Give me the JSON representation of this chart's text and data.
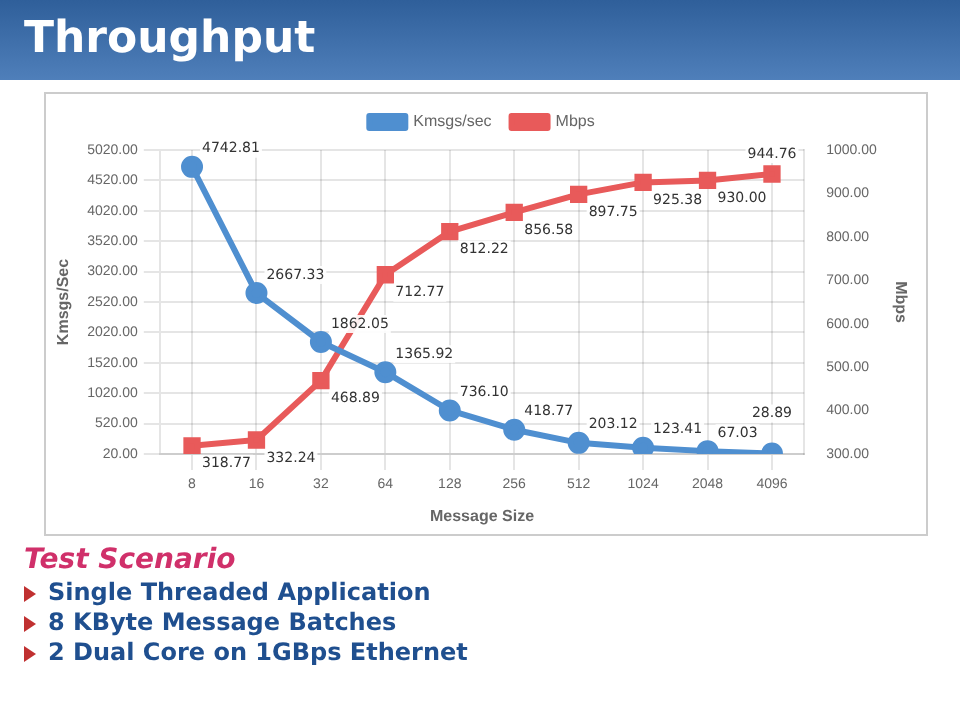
{
  "chart_data": {
    "type": "line",
    "title": "Throughput",
    "xlabel": "Message Size",
    "ylabel": "Kmsgs/Sec",
    "y2label": "Mbps",
    "categories": [
      "8",
      "16",
      "32",
      "64",
      "128",
      "256",
      "512",
      "1024",
      "2048",
      "4096"
    ],
    "series": [
      {
        "name": "Kmsgs/sec",
        "color": "#4f8fd0",
        "marker": "circle",
        "values": [
          4742.81,
          2667.33,
          1862.05,
          1365.92,
          736.1,
          418.77,
          203.12,
          123.41,
          67.03,
          28.89
        ],
        "value_labels": [
          "4742.81",
          "2667.33",
          "1862.05",
          "1365.92",
          "736.10",
          "418.77",
          "203.12",
          "123.41",
          "67.03",
          "28.89"
        ]
      },
      {
        "name": "Mbps",
        "color": "#e85a5a",
        "marker": "square",
        "axis": "y2",
        "values": [
          318.77,
          332.24,
          468.89,
          712.77,
          812.22,
          856.58,
          897.75,
          925.38,
          930.0,
          944.76
        ],
        "value_labels": [
          "318.77",
          "332.24",
          "468.89",
          "712.77",
          "812.22",
          "856.58",
          "897.75",
          "925.38",
          "930.00",
          "944.76"
        ]
      }
    ],
    "ylim": [
      20,
      5020
    ],
    "yticks": [
      {
        "value": 20,
        "label": "20.00"
      },
      {
        "value": 520,
        "label": "520.00"
      },
      {
        "value": 1020,
        "label": "1020.00"
      },
      {
        "value": 1520,
        "label": "1520.00"
      },
      {
        "value": 2020,
        "label": "2020.00"
      },
      {
        "value": 2520,
        "label": "2520.00"
      },
      {
        "value": 3020,
        "label": "3020.00"
      },
      {
        "value": 3520,
        "label": "3520.00"
      },
      {
        "value": 4020,
        "label": "4020.00"
      },
      {
        "value": 4520,
        "label": "4520.00"
      },
      {
        "value": 5020,
        "label": "5020.00"
      }
    ],
    "y2lim": [
      300,
      1000
    ],
    "y2ticks": [
      {
        "value": 300,
        "label": "300.00"
      },
      {
        "value": 400,
        "label": "400.00"
      },
      {
        "value": 500,
        "label": "500.00"
      },
      {
        "value": 600,
        "label": "600.00"
      },
      {
        "value": 700,
        "label": "700.00"
      },
      {
        "value": 800,
        "label": "800.00"
      },
      {
        "value": 900,
        "label": "900.00"
      },
      {
        "value": 1000,
        "label": "1000.00"
      }
    ],
    "grid": true,
    "legend": "top",
    "line_style": "solid",
    "annotations": [
      "Test Scenario",
      "Single Threaded Application",
      "8 KByte Message Batches",
      "2 Dual Core on 1GBps Ethernet"
    ]
  }
}
